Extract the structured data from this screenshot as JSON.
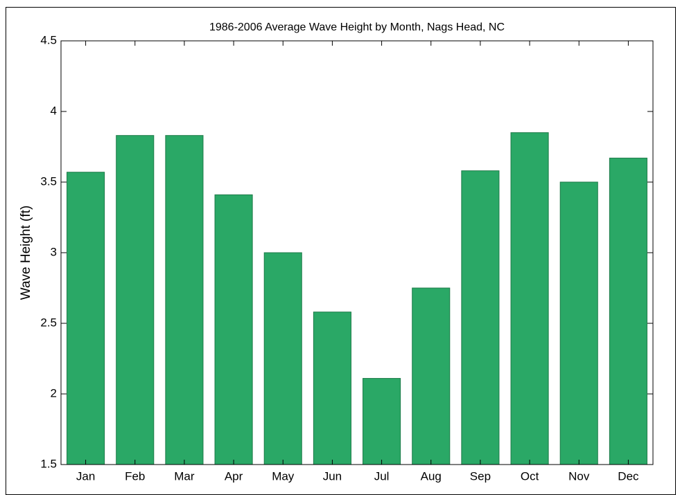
{
  "chart_data": {
    "type": "bar",
    "title": "1986-2006 Average Wave Height by Month, Nags Head, NC",
    "y_label": "Wave Height (ft)",
    "categories": [
      "Jan",
      "Feb",
      "Mar",
      "Apr",
      "May",
      "Jun",
      "Jul",
      "Aug",
      "Sep",
      "Oct",
      "Nov",
      "Dec"
    ],
    "values": [
      3.57,
      3.83,
      3.83,
      3.41,
      3.0,
      2.58,
      2.11,
      2.75,
      3.58,
      3.85,
      3.5,
      3.67
    ],
    "color": "#2aa866",
    "ylim": [
      1.5,
      4.5
    ],
    "yticks": [
      1.5,
      2,
      2.5,
      3,
      3.5,
      4,
      4.5
    ],
    "grid": false
  }
}
